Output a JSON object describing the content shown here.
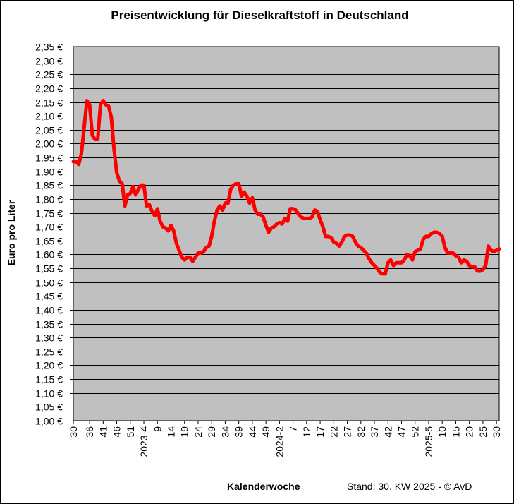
{
  "chart_data": {
    "type": "line",
    "title": "Preisentwicklung für Dieselkraftstoff in Deutschland",
    "ylabel": "Euro pro Liter",
    "xlabel": "Kalenderwoche",
    "footnote": "Stand: 30. KW 2025 - © AvD",
    "ylim": [
      1.0,
      2.35
    ],
    "y_tick_step": 0.05,
    "y_tick_suffix": " €",
    "grid": true,
    "plot_background": "#c0c0c0",
    "line_color": "#ff0000",
    "x_tick_labels": [
      "30",
      "36",
      "41",
      "46",
      "51",
      "2023-4",
      "9",
      "14",
      "19",
      "24",
      "29",
      "34",
      "39",
      "44",
      "49",
      "2024-2",
      "7",
      "12",
      "17",
      "22",
      "27",
      "32",
      "37",
      "42",
      "47",
      "52",
      "2025-5",
      "10",
      "15",
      "20",
      "25",
      "30"
    ],
    "x_tick_index": [
      0,
      6,
      11,
      16,
      21,
      26,
      31,
      36,
      41,
      46,
      51,
      56,
      61,
      66,
      71,
      76,
      81,
      86,
      91,
      96,
      101,
      106,
      111,
      116,
      121,
      126,
      131,
      136,
      141,
      146,
      151,
      156
    ],
    "series": [
      {
        "values": [
          1.935,
          1.935,
          1.925,
          1.965,
          2.06,
          2.155,
          2.14,
          2.03,
          2.015,
          2.015,
          2.14,
          2.155,
          2.14,
          2.135,
          2.095,
          1.98,
          1.895,
          1.865,
          1.855,
          1.775,
          1.815,
          1.82,
          1.845,
          1.815,
          1.835,
          1.85,
          1.85,
          1.775,
          1.78,
          1.755,
          1.74,
          1.765,
          1.72,
          1.7,
          1.695,
          1.685,
          1.705,
          1.685,
          1.64,
          1.615,
          1.59,
          1.58,
          1.59,
          1.59,
          1.575,
          1.59,
          1.605,
          1.605,
          1.61,
          1.625,
          1.63,
          1.665,
          1.72,
          1.76,
          1.775,
          1.76,
          1.785,
          1.785,
          1.835,
          1.85,
          1.855,
          1.855,
          1.81,
          1.825,
          1.81,
          1.785,
          1.805,
          1.76,
          1.745,
          1.745,
          1.735,
          1.705,
          1.68,
          1.695,
          1.7,
          1.71,
          1.715,
          1.71,
          1.73,
          1.72,
          1.765,
          1.765,
          1.76,
          1.745,
          1.735,
          1.73,
          1.73,
          1.73,
          1.735,
          1.76,
          1.755,
          1.725,
          1.7,
          1.665,
          1.665,
          1.66,
          1.645,
          1.64,
          1.63,
          1.645,
          1.665,
          1.67,
          1.67,
          1.665,
          1.645,
          1.63,
          1.625,
          1.615,
          1.605,
          1.585,
          1.57,
          1.56,
          1.55,
          1.535,
          1.53,
          1.53,
          1.57,
          1.58,
          1.56,
          1.57,
          1.57,
          1.57,
          1.58,
          1.6,
          1.595,
          1.58,
          1.61,
          1.615,
          1.62,
          1.655,
          1.665,
          1.665,
          1.675,
          1.68,
          1.68,
          1.675,
          1.665,
          1.625,
          1.605,
          1.605,
          1.605,
          1.595,
          1.59,
          1.57,
          1.58,
          1.575,
          1.56,
          1.555,
          1.555,
          1.54,
          1.54,
          1.545,
          1.56,
          1.63,
          1.615,
          1.61,
          1.615,
          1.62
        ]
      }
    ]
  }
}
